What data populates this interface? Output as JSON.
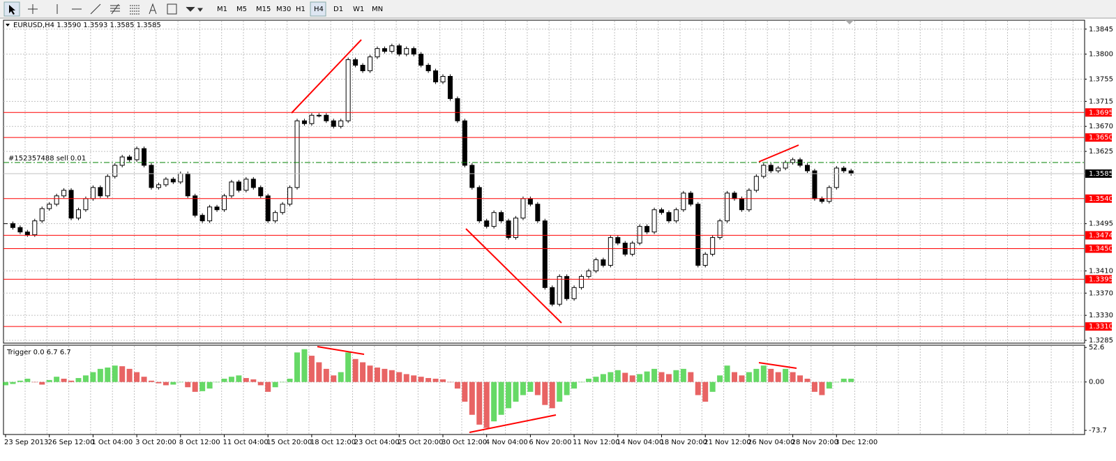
{
  "toolbar": {
    "timeframes": [
      "M1",
      "M5",
      "M15",
      "M30",
      "H1",
      "H4",
      "D1",
      "W1",
      "MN"
    ],
    "active": "H4"
  },
  "chart_data": [
    {
      "type": "candlestick",
      "title": "EURUSD,H4  1.3590 1.3593 1.3585 1.3585",
      "categories": [
        "23 Sep 2013",
        null,
        null,
        null,
        null,
        null,
        "26 Sep 12:00",
        null,
        null,
        null,
        null,
        null,
        "1 Oct 04:00",
        null,
        null,
        null,
        null,
        null,
        "3 Oct 20:00",
        null,
        null,
        null,
        null,
        null,
        "8 Oct 12:00",
        null,
        null,
        null,
        null,
        null,
        "11 Oct 04:00",
        null,
        null,
        null,
        null,
        null,
        "15 Oct 20:00",
        null,
        null,
        null,
        null,
        null,
        "18 Oct 12:00",
        null,
        null,
        null,
        null,
        null,
        "23 Oct 04:00",
        null,
        null,
        null,
        null,
        null,
        "25 Oct 20:00",
        null,
        null,
        null,
        null,
        null,
        "30 Oct 12:00",
        null,
        null,
        null,
        null,
        null,
        "4 Nov 04:00",
        null,
        null,
        null,
        null,
        null,
        "6 Nov 20:00",
        null,
        null,
        null,
        null,
        null,
        "11 Nov 12:00",
        null,
        null,
        null,
        null,
        null,
        "14 Nov 04:00",
        null,
        null,
        null,
        null,
        null,
        "18 Nov 20:00",
        null,
        null,
        null,
        null,
        null,
        "21 Nov 12:00",
        null,
        null,
        null,
        null,
        null,
        "26 Nov 04:00",
        null,
        null,
        null,
        null,
        null,
        "28 Nov 20:00",
        null,
        null,
        null,
        null,
        null,
        "3 Dec 12:00",
        null,
        null
      ],
      "values": [
        1.3495,
        1.3488,
        1.348,
        1.3475,
        1.35,
        1.3522,
        1.353,
        1.3545,
        1.3555,
        1.3505,
        1.352,
        1.354,
        1.356,
        1.3545,
        1.358,
        1.36,
        1.3615,
        1.361,
        1.363,
        1.36,
        1.356,
        1.3565,
        1.3575,
        1.357,
        1.3585,
        1.3545,
        1.351,
        1.35,
        1.3525,
        1.352,
        1.3545,
        1.357,
        1.3555,
        1.3575,
        1.356,
        1.3545,
        1.35,
        1.3515,
        1.353,
        1.356,
        1.368,
        1.3675,
        1.369,
        1.369,
        1.368,
        1.367,
        1.368,
        1.379,
        1.378,
        1.377,
        1.3795,
        1.381,
        1.3805,
        1.3815,
        1.38,
        1.381,
        1.38,
        1.378,
        1.377,
        1.375,
        1.376,
        1.372,
        1.368,
        1.36,
        1.356,
        1.35,
        1.349,
        1.3515,
        1.35,
        1.347,
        1.3505,
        1.354,
        1.353,
        1.35,
        1.338,
        1.335,
        1.34,
        1.336,
        1.338,
        1.34,
        1.341,
        1.343,
        1.342,
        1.347,
        1.346,
        1.344,
        1.346,
        1.349,
        1.348,
        1.352,
        1.3515,
        1.35,
        1.352,
        1.355,
        1.353,
        1.342,
        1.344,
        1.347,
        1.35,
        1.355,
        1.354,
        1.352,
        1.3555,
        1.358,
        1.36,
        1.359,
        1.3595,
        1.3605,
        1.361,
        1.36,
        1.359,
        1.354,
        1.3535,
        1.356,
        1.3595,
        1.359,
        1.3585
      ],
      "up_color": "#ffffff",
      "down_color": "#000000",
      "ylim": [
        1.328,
        1.3861
      ],
      "yticks": [
        {
          "value": 1.3845,
          "label": "1.3845"
        },
        {
          "value": 1.38,
          "label": "1.3800"
        },
        {
          "value": 1.3755,
          "label": "1.3755"
        },
        {
          "value": 1.3715,
          "label": "1.3715"
        },
        {
          "value": 1.367,
          "label": "1.3670"
        },
        {
          "value": 1.3625,
          "label": "1.3625"
        },
        {
          "value": 1.3495,
          "label": "1.3495"
        },
        {
          "value": 1.341,
          "label": "1.3410"
        },
        {
          "value": 1.337,
          "label": "1.3370"
        },
        {
          "value": 1.333,
          "label": "1.3330"
        },
        {
          "value": 1.3285,
          "label": "1.3285"
        }
      ],
      "levels": [
        {
          "value": 1.3695,
          "label": "1.3695"
        },
        {
          "value": 1.365,
          "label": "1.3650"
        },
        {
          "value": 1.354,
          "label": "1.3540"
        },
        {
          "value": 1.3474,
          "label": "1.3474"
        },
        {
          "value": 1.345,
          "label": "1.3450"
        },
        {
          "value": 1.3395,
          "label": "1.3395"
        },
        {
          "value": 1.331,
          "label": "1.3310"
        }
      ],
      "level_color": "#ff0000",
      "order": {
        "label": "#152357488 sell 0.01",
        "value": 1.3605,
        "color": "#008000"
      },
      "last_price": {
        "value": 1.3585,
        "label": "1.3585"
      },
      "grid": true
    },
    {
      "type": "histogram",
      "title": "Trigger 0.0 6.7 6.7",
      "values": [
        -5,
        -3,
        2,
        5,
        0,
        -4,
        3,
        8,
        5,
        2,
        6,
        10,
        15,
        20,
        22,
        25,
        24,
        20,
        15,
        8,
        2,
        -2,
        -5,
        -4,
        0,
        -8,
        -15,
        -14,
        -10,
        0,
        5,
        8,
        10,
        6,
        4,
        -5,
        -15,
        -8,
        0,
        5,
        45,
        50,
        40,
        30,
        20,
        10,
        15,
        45,
        35,
        30,
        25,
        22,
        20,
        18,
        15,
        12,
        10,
        8,
        6,
        5,
        4,
        0,
        -10,
        -30,
        -50,
        -65,
        -70,
        -60,
        -50,
        -40,
        -30,
        -20,
        -15,
        -20,
        -35,
        -40,
        -30,
        -20,
        -10,
        0,
        5,
        8,
        12,
        15,
        18,
        14,
        10,
        12,
        16,
        20,
        15,
        12,
        18,
        20,
        15,
        -20,
        -30,
        -15,
        10,
        25,
        15,
        10,
        15,
        20,
        25,
        20,
        15,
        20,
        15,
        10,
        5,
        -15,
        -20,
        -10,
        0,
        5,
        5
      ],
      "up_color": "#33cc33",
      "down_color": "#e03030",
      "ylim": [
        -80,
        56
      ],
      "yticks": [
        52.6,
        {
          "value": 0,
          "label": "0.00"
        },
        -73.7
      ]
    }
  ]
}
